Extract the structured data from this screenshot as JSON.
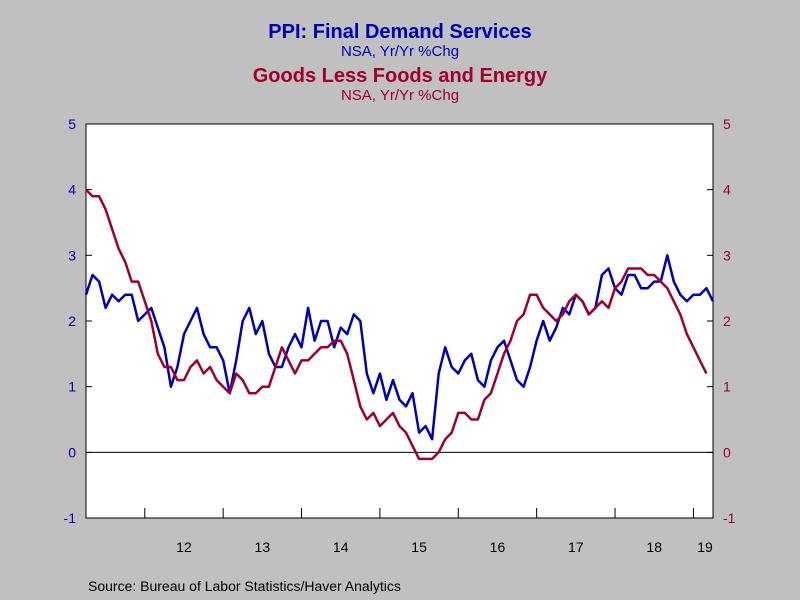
{
  "colors": {
    "services": "#0000b8",
    "goods": "#a0002a",
    "background": "#c0c0c0",
    "plot_bg": "#ffffff"
  },
  "title1": "PPI: Final Demand Services",
  "subtitle1": "NSA, Yr/Yr %Chg",
  "title2": "Goods Less Foods and Energy",
  "subtitle2": "NSA, Yr/Yr %Chg",
  "source": "Source:  Bureau of Labor Statistics/Haver Analytics",
  "chart_data": {
    "type": "line",
    "ylim": [
      -1,
      5
    ],
    "yticks": [
      -1,
      0,
      1,
      2,
      3,
      4,
      5
    ],
    "xlim": [
      2011.25,
      2019.25
    ],
    "year_labels": [
      "12",
      "13",
      "14",
      "15",
      "16",
      "17",
      "18",
      "19"
    ],
    "grid": false,
    "zero_line": true,
    "series": [
      {
        "name": "PPI: Final Demand Services",
        "axis": "left",
        "x_start": 2011.25,
        "x_step": 0.08333,
        "values": [
          2.4,
          2.7,
          2.6,
          2.2,
          2.4,
          2.3,
          2.4,
          2.4,
          2.0,
          2.1,
          2.2,
          1.9,
          1.6,
          1.0,
          1.3,
          1.8,
          2.0,
          2.2,
          1.8,
          1.6,
          1.6,
          1.4,
          0.9,
          1.4,
          2.0,
          2.2,
          1.8,
          2.0,
          1.5,
          1.3,
          1.3,
          1.6,
          1.8,
          1.6,
          2.2,
          1.7,
          2.0,
          2.0,
          1.6,
          1.9,
          1.8,
          2.1,
          2.0,
          1.2,
          0.9,
          1.2,
          0.8,
          1.1,
          0.8,
          0.7,
          0.9,
          0.3,
          0.4,
          0.2,
          1.2,
          1.6,
          1.3,
          1.2,
          1.4,
          1.5,
          1.1,
          1.0,
          1.4,
          1.6,
          1.7,
          1.4,
          1.1,
          1.0,
          1.3,
          1.7,
          2.0,
          1.7,
          1.9,
          2.2,
          2.1,
          2.4,
          2.3,
          2.1,
          2.2,
          2.7,
          2.8,
          2.5,
          2.4,
          2.7,
          2.7,
          2.5,
          2.5,
          2.6,
          2.6,
          3.0,
          2.6,
          2.4,
          2.3,
          2.4,
          2.4,
          2.5,
          2.3
        ]
      },
      {
        "name": "Goods Less Foods and Energy",
        "axis": "right",
        "x_start": 2011.25,
        "x_step": 0.08333,
        "values": [
          4.0,
          3.9,
          3.9,
          3.7,
          3.4,
          3.1,
          2.9,
          2.6,
          2.6,
          2.3,
          2.0,
          1.5,
          1.3,
          1.3,
          1.1,
          1.1,
          1.3,
          1.4,
          1.2,
          1.3,
          1.1,
          1.0,
          0.9,
          1.2,
          1.1,
          0.9,
          0.9,
          1.0,
          1.0,
          1.3,
          1.6,
          1.4,
          1.2,
          1.4,
          1.4,
          1.5,
          1.6,
          1.6,
          1.7,
          1.7,
          1.5,
          1.1,
          0.7,
          0.5,
          0.6,
          0.4,
          0.5,
          0.6,
          0.4,
          0.3,
          0.1,
          -0.1,
          -0.1,
          -0.1,
          0.0,
          0.2,
          0.3,
          0.6,
          0.6,
          0.5,
          0.5,
          0.8,
          0.9,
          1.2,
          1.5,
          1.7,
          2.0,
          2.1,
          2.4,
          2.4,
          2.2,
          2.1,
          2.0,
          2.1,
          2.3,
          2.4,
          2.3,
          2.1,
          2.2,
          2.3,
          2.2,
          2.5,
          2.6,
          2.8,
          2.8,
          2.8,
          2.7,
          2.7,
          2.6,
          2.5,
          2.3,
          2.1,
          1.8,
          1.6,
          1.4,
          1.2
        ]
      }
    ]
  }
}
